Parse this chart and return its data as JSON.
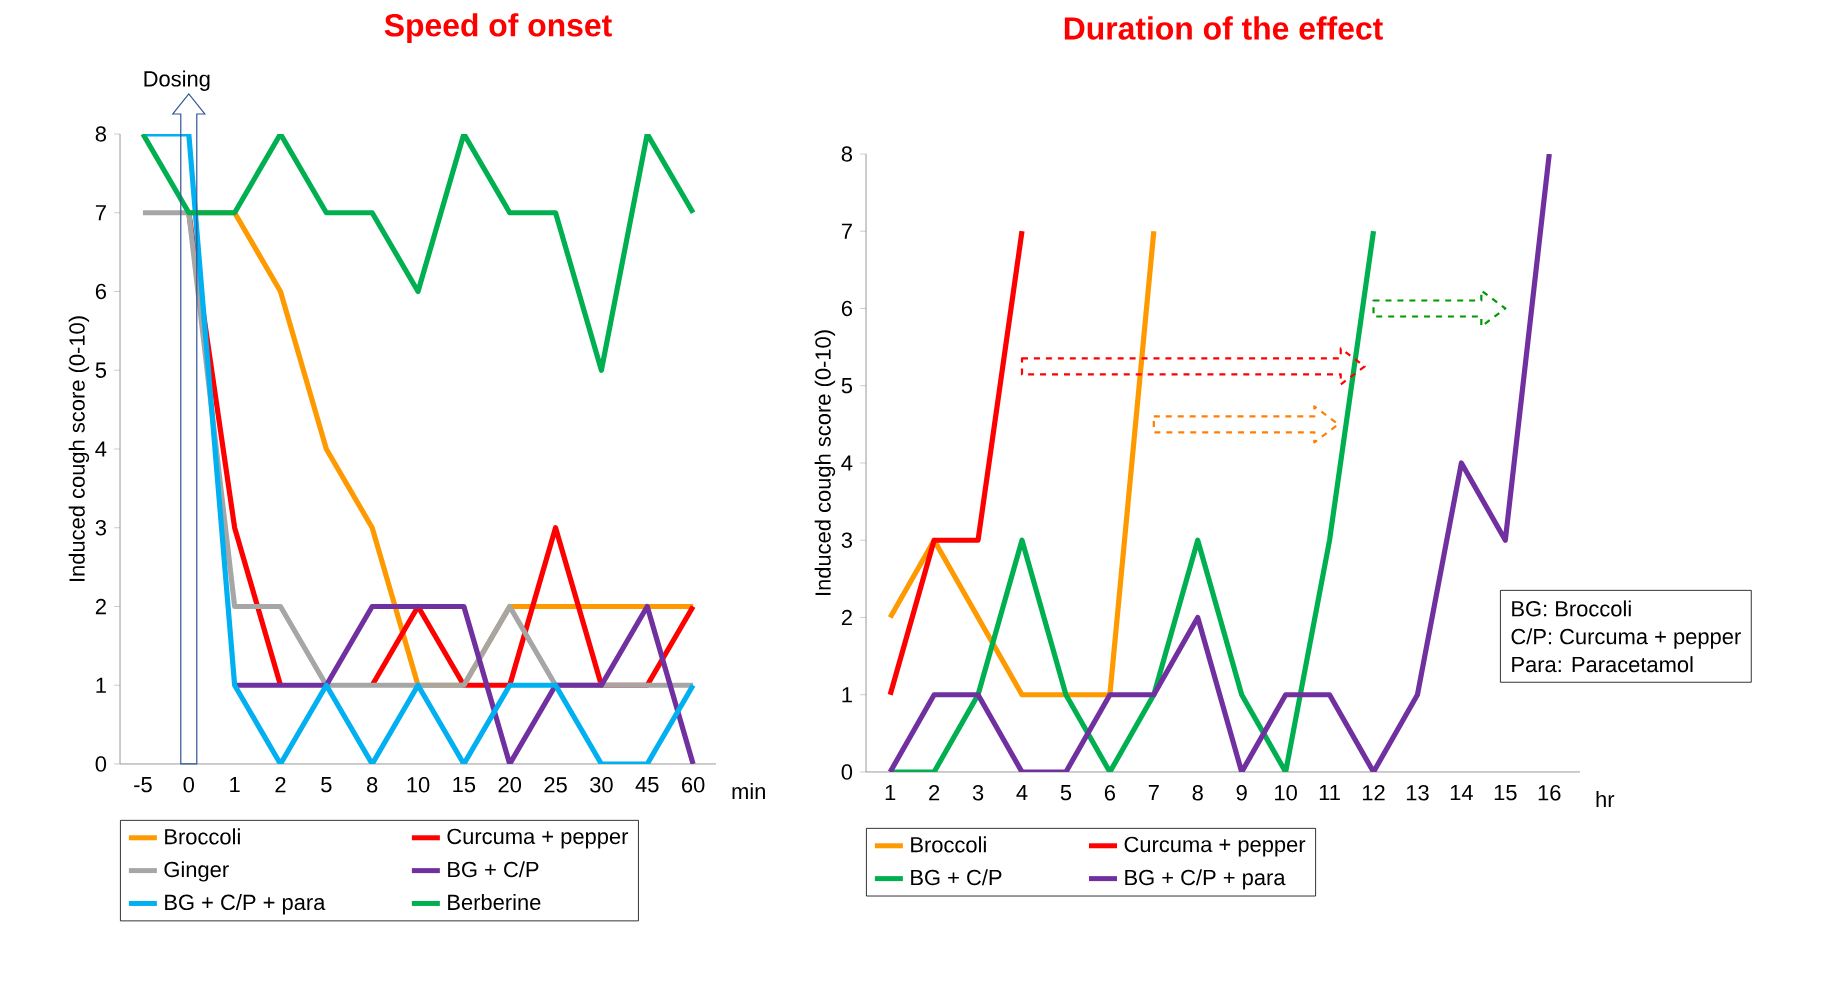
{
  "chart_data": [
    {
      "type": "line",
      "title": "Speed of onset",
      "xlabel": "min",
      "ylabel": "Induced cough score (0-10)",
      "categories": [
        "-5",
        "0",
        "1",
        "2",
        "5",
        "8",
        "10",
        "15",
        "20",
        "25",
        "30",
        "45",
        "60"
      ],
      "ylim": [
        0,
        8
      ],
      "yticks": [
        0,
        1,
        2,
        3,
        4,
        5,
        6,
        7,
        8
      ],
      "legend": "bottom",
      "annotations": [
        {
          "text": "Dosing",
          "x": "0",
          "y": 8
        }
      ],
      "series": [
        {
          "name": "Broccoli",
          "color": "#ff9900",
          "values": [
            null,
            7,
            7,
            6,
            4,
            3,
            1,
            1,
            2,
            2,
            2,
            2,
            2
          ]
        },
        {
          "name": "Curcuma + pepper",
          "color": "#ff0000",
          "values": [
            null,
            7,
            3,
            1,
            null,
            1,
            2,
            1,
            1,
            3,
            1,
            1,
            2
          ]
        },
        {
          "name": "Ginger",
          "color": "#a6a6a6",
          "values": [
            7,
            7,
            2,
            2,
            1,
            1,
            1,
            1,
            2,
            1,
            1,
            1,
            1
          ]
        },
        {
          "name": "BG + C/P",
          "color": "#7030a0",
          "values": [
            null,
            null,
            1,
            1,
            1,
            2,
            2,
            2,
            0,
            1,
            1,
            2,
            0
          ]
        },
        {
          "name": "BG + C/P + para",
          "color": "#00b0f0",
          "values": [
            8,
            8,
            1,
            0,
            1,
            0,
            1,
            0,
            1,
            1,
            0,
            0,
            1
          ]
        },
        {
          "name": "Berberine",
          "color": "#00b050",
          "values": [
            8,
            7,
            7,
            8,
            7,
            7,
            6,
            8,
            7,
            7,
            5,
            8,
            7
          ]
        }
      ]
    },
    {
      "type": "line",
      "title": "Duration of the effect",
      "xlabel": "hr",
      "ylabel": "Induced cough score (0-10)",
      "categories": [
        "1",
        "2",
        "3",
        "4",
        "5",
        "6",
        "7",
        "8",
        "9",
        "10",
        "11",
        "12",
        "13",
        "14",
        "15",
        "16"
      ],
      "ylim": [
        0,
        8
      ],
      "yticks": [
        0,
        1,
        2,
        3,
        4,
        5,
        6,
        7,
        8
      ],
      "legend": "bottom",
      "annotations": [
        "BG: Broccoli",
        "C/P: Curcuma + pepper",
        "Para: Paracetamol"
      ],
      "series": [
        {
          "name": "Broccoli",
          "color": "#ff9900",
          "values": [
            2,
            3,
            2,
            1,
            1,
            1,
            7,
            null,
            null,
            null,
            null,
            null,
            null,
            null,
            null,
            null
          ]
        },
        {
          "name": "Curcuma + pepper",
          "color": "#ff0000",
          "values": [
            1,
            3,
            3,
            7,
            null,
            null,
            null,
            null,
            null,
            null,
            null,
            null,
            null,
            null,
            null,
            null
          ]
        },
        {
          "name": "BG + C/P",
          "color": "#00b050",
          "values": [
            0,
            0,
            1,
            3,
            1,
            0,
            1,
            3,
            1,
            0,
            3,
            7,
            null,
            null,
            null,
            null
          ]
        },
        {
          "name": "BG + C/P + para",
          "color": "#7030a0",
          "values": [
            0,
            1,
            1,
            0,
            0,
            1,
            1,
            2,
            0,
            1,
            1,
            0,
            1,
            4,
            3,
            8
          ]
        }
      ]
    }
  ]
}
